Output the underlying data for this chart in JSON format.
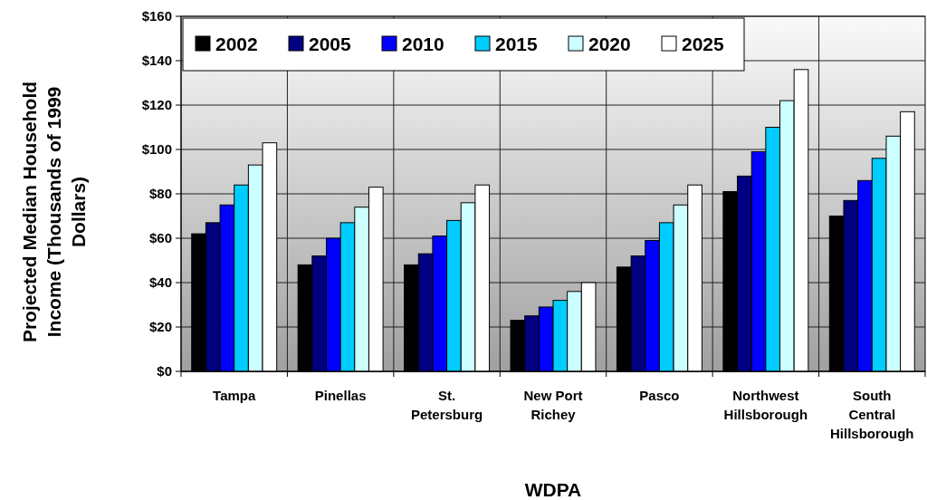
{
  "chart_data": {
    "type": "bar",
    "xlabel": "WDPA",
    "ylabel": "Projected Median Household Income (Thousands of 1999 Dollars)",
    "categories": [
      "Tampa",
      "Pinellas",
      "St. Petersburg",
      "New Port Richey",
      "Pasco",
      "Northwest Hillsborough",
      "South Central Hillsborough"
    ],
    "series": [
      {
        "name": "2002",
        "color": "#000000",
        "values": [
          62,
          48,
          48,
          23,
          47,
          81,
          70
        ]
      },
      {
        "name": "2005",
        "color": "#000080",
        "values": [
          67,
          52,
          53,
          25,
          52,
          88,
          77
        ]
      },
      {
        "name": "2010",
        "color": "#0000ff",
        "values": [
          75,
          60,
          61,
          29,
          59,
          99,
          86
        ]
      },
      {
        "name": "2015",
        "color": "#00ccff",
        "values": [
          84,
          67,
          68,
          32,
          67,
          110,
          96
        ]
      },
      {
        "name": "2020",
        "color": "#ccffff",
        "values": [
          93,
          74,
          76,
          36,
          75,
          122,
          106
        ]
      },
      {
        "name": "2025",
        "color": "#ffffff",
        "values": [
          103,
          83,
          84,
          40,
          84,
          136,
          117
        ]
      }
    ],
    "ylim": [
      0,
      160
    ],
    "yticks": [
      {
        "value": 0,
        "label": "$0"
      },
      {
        "value": 20,
        "label": "$20"
      },
      {
        "value": 40,
        "label": "$40"
      },
      {
        "value": 60,
        "label": "$60"
      },
      {
        "value": 80,
        "label": "$80"
      },
      {
        "value": 100,
        "label": "$100"
      },
      {
        "value": 120,
        "label": "$120"
      },
      {
        "value": 140,
        "label": "$140"
      },
      {
        "value": 160,
        "label": "$160"
      }
    ],
    "grid": true,
    "legend": "top left"
  }
}
